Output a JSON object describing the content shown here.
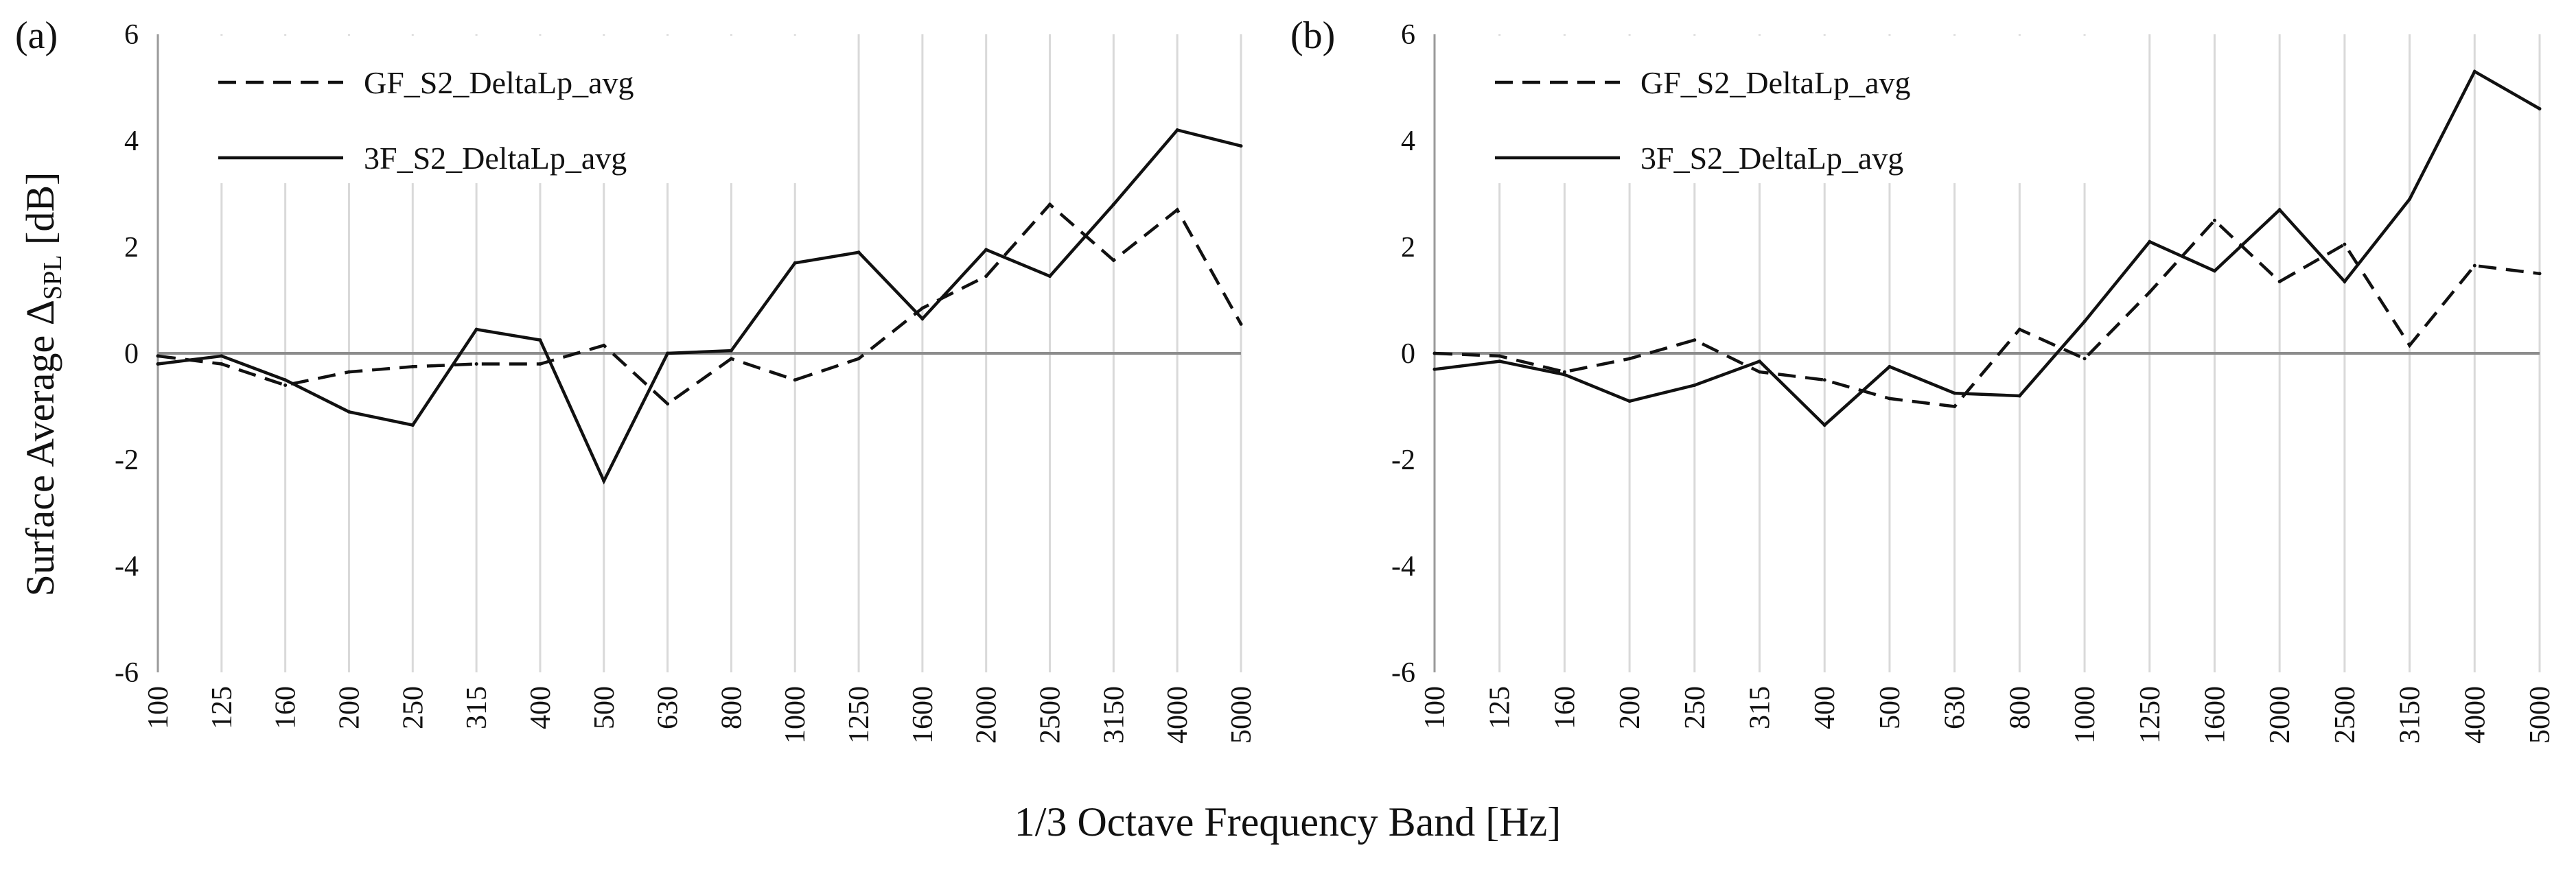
{
  "figure": {
    "ylabel_main": "Surface Average Δ",
    "ylabel_sub": "SPL",
    "ylabel_unit": " [dB]",
    "xlabel": "1/3 Octave Frequency Band [Hz]"
  },
  "colors": {
    "line": "#111111",
    "grid": "#d9d9d9",
    "zero_line": "#8c8c8c",
    "background": "#ffffff"
  },
  "chart_data": [
    {
      "type": "line",
      "panel_label": "(a)",
      "categories": [
        "100",
        "125",
        "160",
        "200",
        "250",
        "315",
        "400",
        "500",
        "630",
        "800",
        "1000",
        "1250",
        "1600",
        "2000",
        "2500",
        "3150",
        "4000",
        "5000"
      ],
      "series": [
        {
          "name": "GF_S2_DeltaLp_avg",
          "style": "dashed",
          "values": [
            -0.05,
            -0.2,
            -0.6,
            -0.35,
            -0.25,
            -0.2,
            -0.2,
            0.15,
            -0.95,
            -0.1,
            -0.5,
            -0.1,
            0.85,
            1.45,
            2.8,
            1.75,
            2.7,
            0.55
          ]
        },
        {
          "name": "3F_S2_DeltaLp_avg",
          "style": "solid",
          "values": [
            -0.2,
            -0.05,
            -0.5,
            -1.1,
            -1.35,
            0.45,
            0.25,
            -2.4,
            0.0,
            0.05,
            1.7,
            1.9,
            0.65,
            1.95,
            1.45,
            2.8,
            4.2,
            3.9
          ]
        }
      ],
      "ylim": [
        -6,
        6
      ],
      "yticks": [
        "6",
        "4",
        "2",
        "0",
        "-2",
        "-4",
        "-6"
      ],
      "legend": "top-left",
      "grid": "vertical"
    },
    {
      "type": "line",
      "panel_label": "(b)",
      "categories": [
        "100",
        "125",
        "160",
        "200",
        "250",
        "315",
        "400",
        "500",
        "630",
        "800",
        "1000",
        "1250",
        "1600",
        "2000",
        "2500",
        "3150",
        "4000",
        "5000"
      ],
      "series": [
        {
          "name": "GF_S2_DeltaLp_avg",
          "style": "dashed",
          "values": [
            0.0,
            -0.05,
            -0.35,
            -0.1,
            0.25,
            -0.35,
            -0.5,
            -0.85,
            -1.0,
            0.45,
            -0.1,
            1.15,
            2.5,
            1.35,
            2.05,
            0.15,
            1.65,
            1.5
          ]
        },
        {
          "name": "3F_S2_DeltaLp_avg",
          "style": "solid",
          "values": [
            -0.3,
            -0.15,
            -0.4,
            -0.9,
            -0.6,
            -0.15,
            -1.35,
            -0.25,
            -0.75,
            -0.8,
            0.6,
            2.1,
            1.55,
            2.7,
            1.35,
            2.9,
            5.3,
            4.6
          ]
        }
      ],
      "ylim": [
        -6,
        6
      ],
      "yticks": [
        "6",
        "4",
        "2",
        "0",
        "-2",
        "-4",
        "-6"
      ],
      "legend": "top-left",
      "grid": "vertical"
    }
  ]
}
